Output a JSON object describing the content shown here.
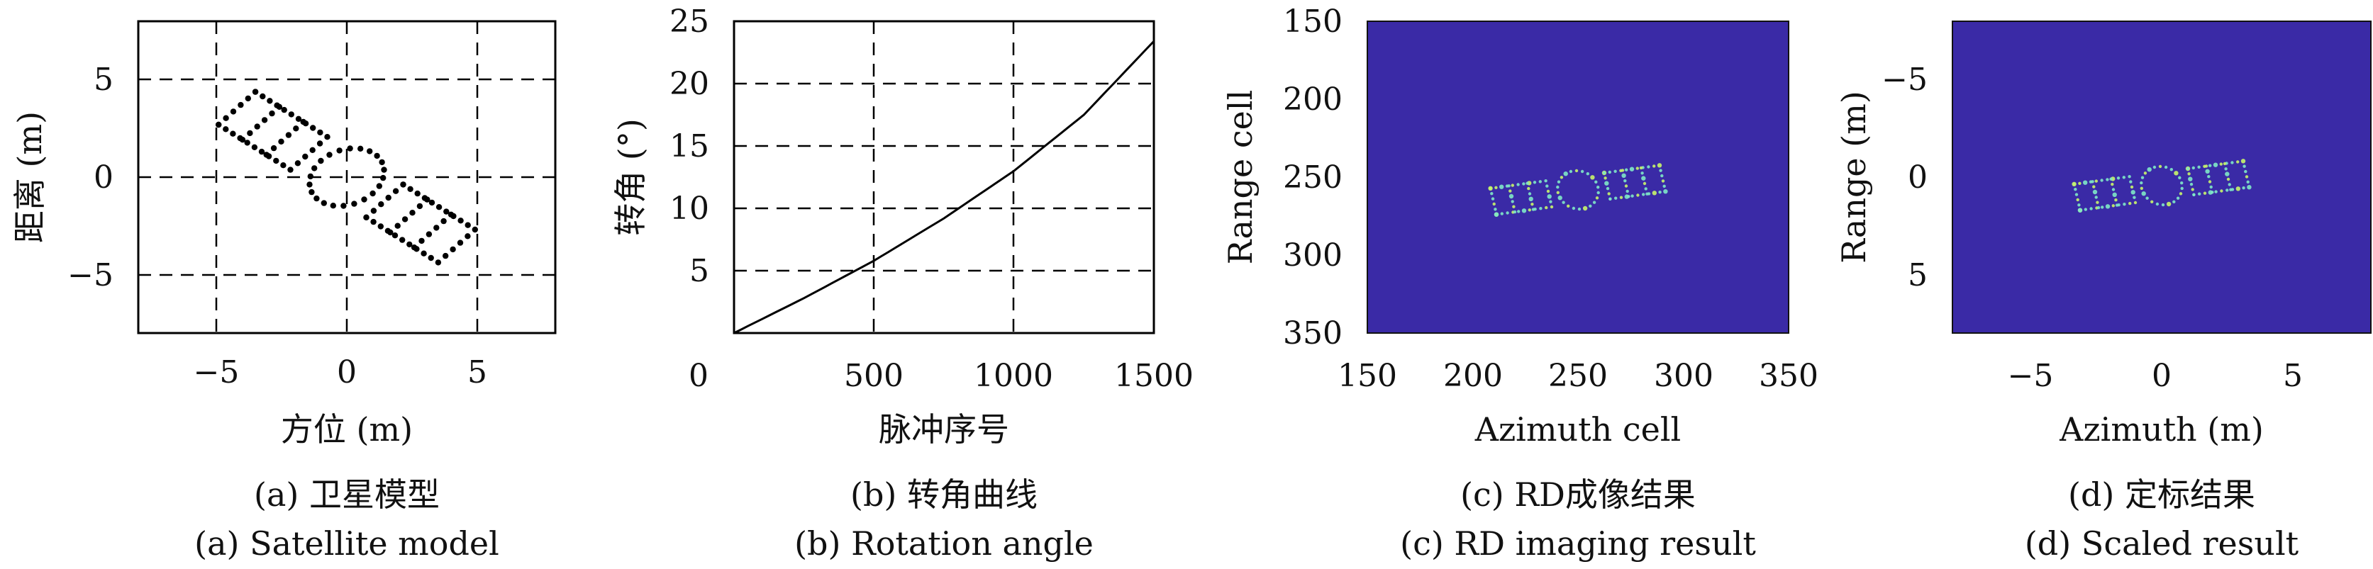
{
  "colors": {
    "heat_background": "#3a2aa6",
    "heat_points_a": "#7fe8c8",
    "heat_points_b": "#c9f56a",
    "grid": "#000000",
    "curve": "#000000"
  },
  "panels": [
    {
      "id": "a",
      "caption_cn": "(a) 卫星模型",
      "caption_en": "(a) Satellite model",
      "chart_data": {
        "type": "scatter",
        "xlabel": "方位 (m)",
        "ylabel": "距离 (m)",
        "xlim": [
          -8,
          8
        ],
        "ylim": [
          -8,
          8
        ],
        "xticks": [
          "−5",
          "0",
          "5"
        ],
        "yticks": [
          "5",
          "0",
          "−5"
        ],
        "grid": true,
        "note": "dot outline of satellite: two rectangular solar panels joined by a central body"
      }
    },
    {
      "id": "b",
      "caption_cn": "(b) 转角曲线",
      "caption_en": "(b) Rotation angle",
      "chart_data": {
        "type": "line",
        "xlabel": "脉冲序号",
        "ylabel": "转角 (°)",
        "xlim": [
          0,
          1500
        ],
        "ylim": [
          0,
          25
        ],
        "xticks": [
          "0",
          "500",
          "1000",
          "1500"
        ],
        "yticks": [
          "25",
          "20",
          "15",
          "10",
          "5"
        ],
        "grid": true,
        "x": [
          0,
          250,
          500,
          750,
          1000,
          1250,
          1500
        ],
        "y": [
          0,
          2.8,
          5.8,
          9.2,
          13.0,
          17.5,
          23.4
        ]
      }
    },
    {
      "id": "c",
      "caption_cn": "(c) RD成像结果",
      "caption_en": "(c) RD imaging result",
      "chart_data": {
        "type": "heatmap",
        "xlabel": "Azimuth cell",
        "ylabel": "Range cell",
        "xlim": [
          150,
          350
        ],
        "ylim": [
          150,
          350
        ],
        "xticks": [
          "150",
          "200",
          "250",
          "300",
          "350"
        ],
        "yticks": [
          "150",
          "200",
          "250",
          "300",
          "350"
        ],
        "grid": false
      }
    },
    {
      "id": "d",
      "caption_cn": "(d) 定标结果",
      "caption_en": "(d) Scaled result",
      "chart_data": {
        "type": "heatmap",
        "xlabel": "Azimuth (m)",
        "ylabel": "Range (m)",
        "xlim": [
          -8,
          8
        ],
        "ylim": [
          -8,
          8
        ],
        "xticks": [
          "−5",
          "0",
          "5"
        ],
        "yticks": [
          "−5",
          "0",
          "5"
        ],
        "grid": false
      }
    }
  ]
}
